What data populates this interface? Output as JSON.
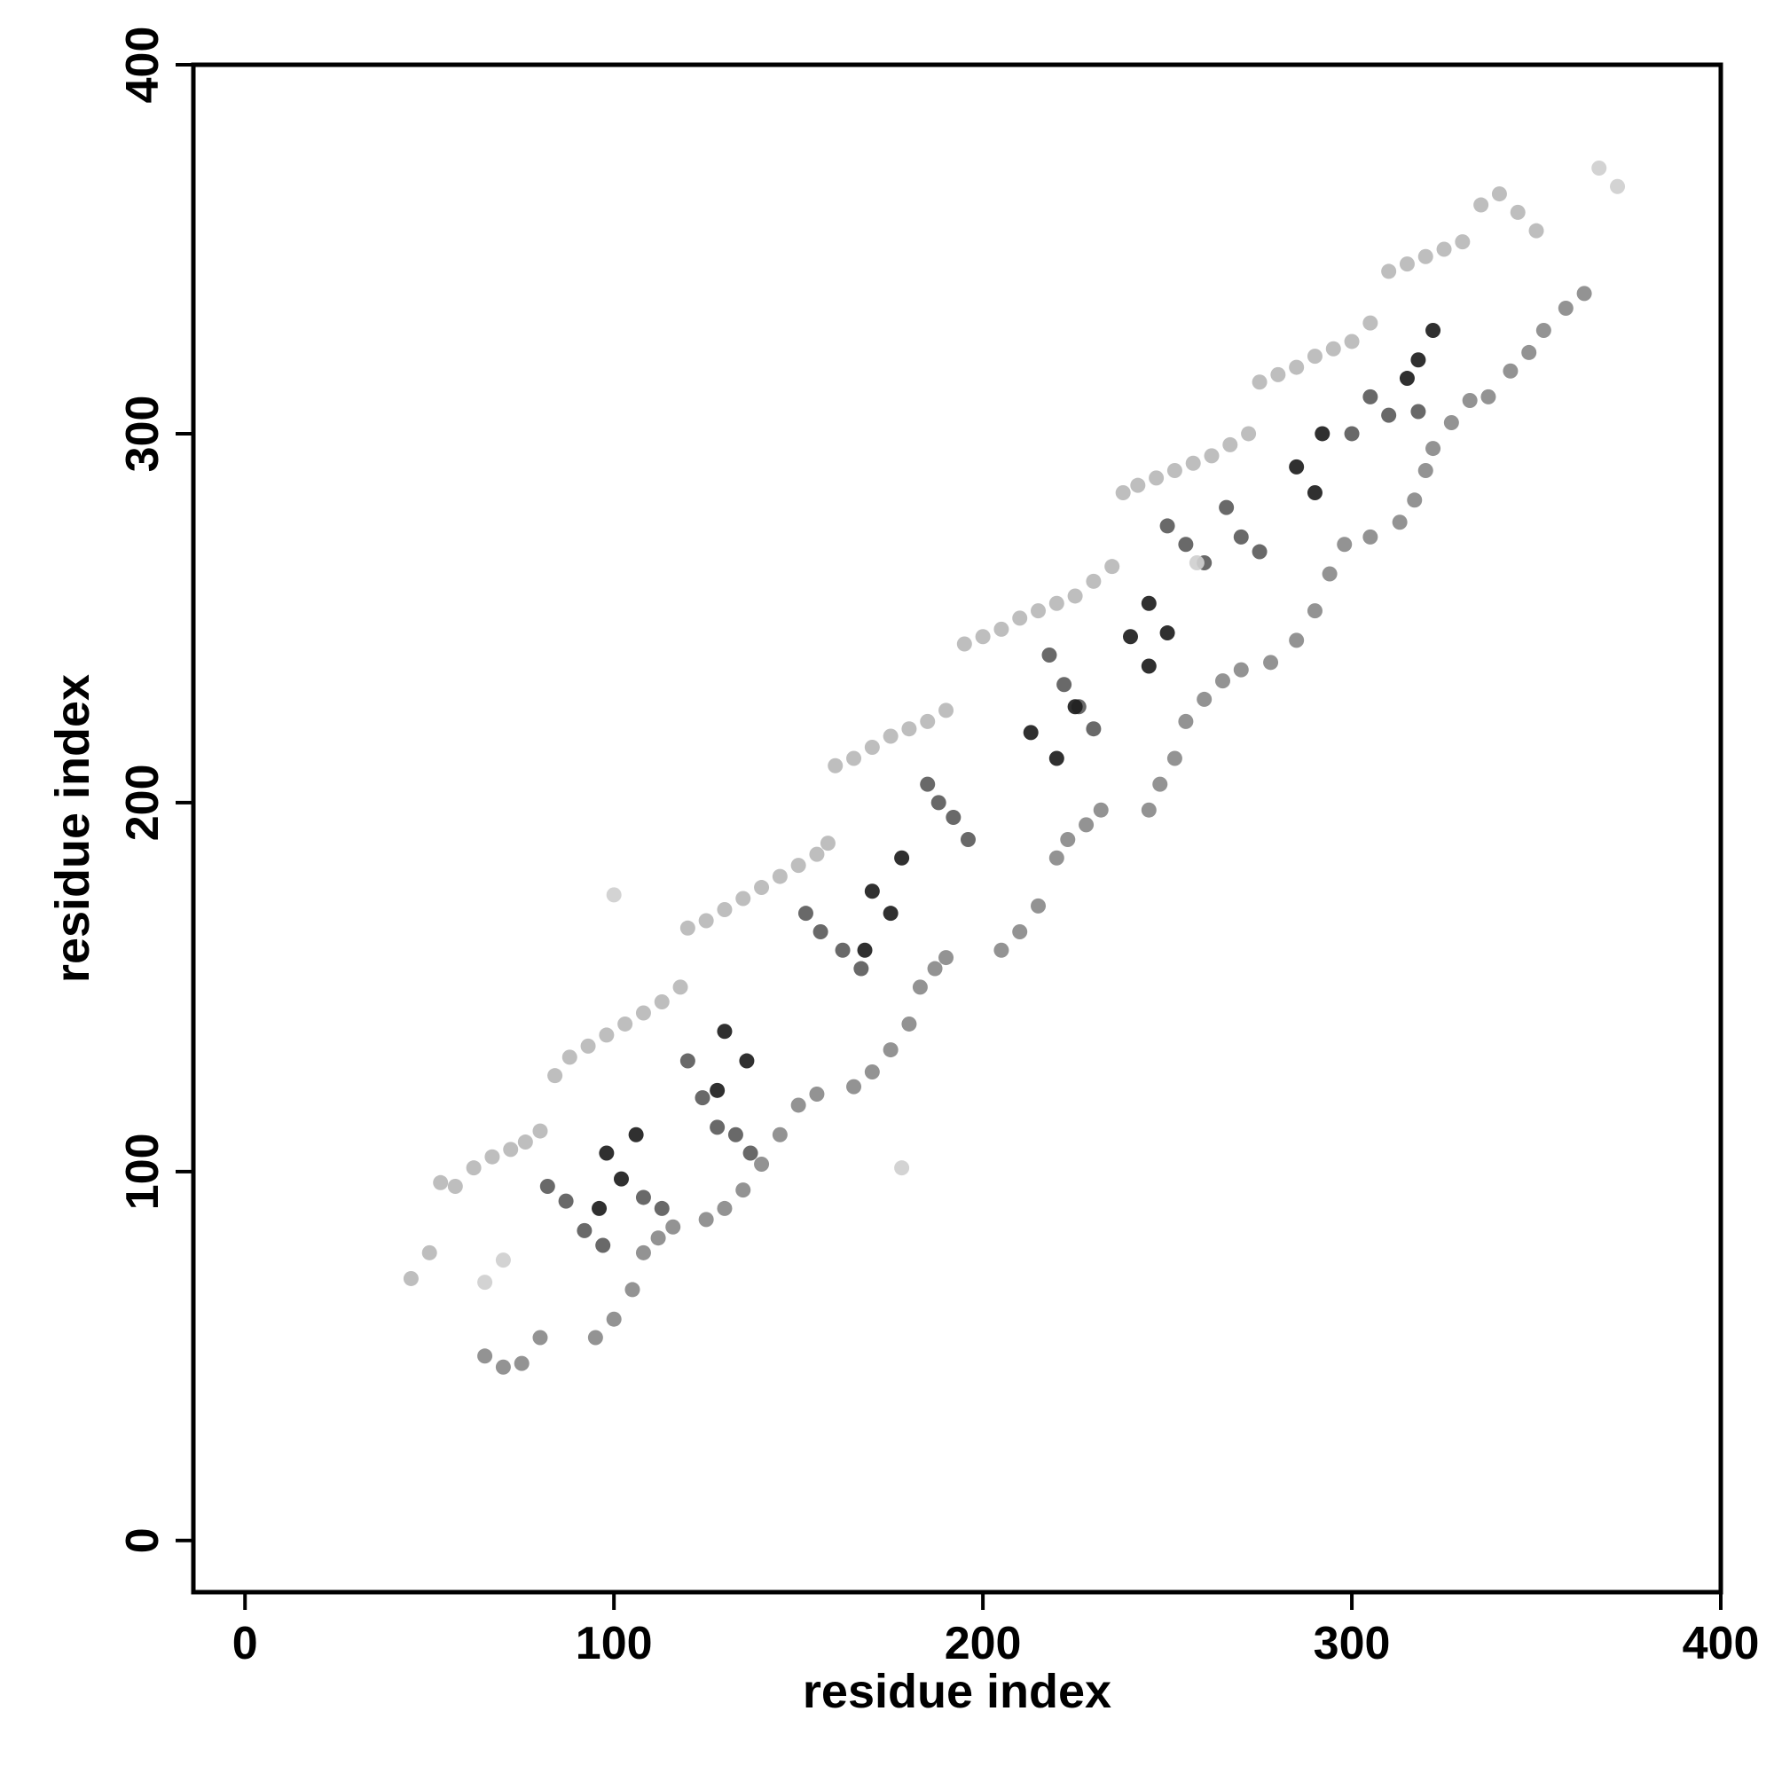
{
  "chart_data": {
    "type": "scatter",
    "x_label": "residue index",
    "y_label": "residue index",
    "xlim": [
      -14,
      400
    ],
    "ylim": [
      -14,
      400
    ],
    "xticks": [
      0,
      100,
      200,
      300,
      400
    ],
    "yticks": [
      0,
      100,
      200,
      300,
      400
    ],
    "grid": false,
    "series": [
      {
        "color": "#b8b8b8",
        "x": [
          45,
          50,
          53,
          57,
          62,
          67,
          72,
          76,
          80,
          84,
          88,
          93,
          98,
          103,
          108,
          113,
          118,
          120,
          125,
          130,
          135,
          140,
          145,
          150,
          155,
          158,
          160,
          165,
          170,
          175,
          180,
          185,
          190,
          195,
          200,
          205,
          210,
          215,
          220,
          225,
          230,
          235,
          238,
          242,
          247,
          252,
          257,
          262,
          267,
          272,
          275,
          280,
          285,
          290,
          295,
          300,
          305,
          310,
          315,
          320,
          325,
          330,
          335,
          340,
          345,
          350
        ],
        "y": [
          71,
          78,
          97,
          96,
          101,
          104,
          106,
          108,
          111,
          126,
          131,
          134,
          137,
          140,
          143,
          146,
          150,
          166,
          168,
          171,
          174,
          177,
          180,
          183,
          186,
          189,
          210,
          212,
          215,
          218,
          220,
          222,
          225,
          243,
          245,
          247,
          250,
          252,
          254,
          256,
          260,
          264,
          284,
          286,
          288,
          290,
          292,
          294,
          297,
          300,
          314,
          316,
          318,
          321,
          323,
          325,
          330,
          344,
          346,
          348,
          350,
          352,
          362,
          365,
          360,
          355
        ]
      },
      {
        "color": "#8a8a8a",
        "x": [
          65,
          70,
          75,
          80,
          95,
          100,
          105,
          108,
          112,
          116,
          125,
          130,
          135,
          140,
          145,
          150,
          155,
          165,
          170,
          175,
          180,
          183,
          187,
          190,
          205,
          210,
          215,
          220,
          223,
          228,
          232,
          245,
          248,
          252,
          255,
          260,
          265,
          270,
          278,
          285,
          290,
          294,
          298,
          305,
          313,
          317,
          320,
          322,
          327,
          332,
          337,
          343,
          348,
          352,
          358,
          363
        ],
        "y": [
          50,
          47,
          48,
          55,
          55,
          60,
          68,
          78,
          82,
          85,
          87,
          90,
          95,
          102,
          110,
          118,
          121,
          123,
          127,
          133,
          140,
          150,
          155,
          158,
          160,
          165,
          172,
          185,
          190,
          194,
          198,
          198,
          205,
          212,
          222,
          228,
          233,
          236,
          238,
          244,
          252,
          262,
          270,
          272,
          276,
          282,
          290,
          296,
          303,
          309,
          310,
          317,
          322,
          328,
          334,
          338
        ]
      },
      {
        "color": "#5c5c5c",
        "x": [
          82,
          87,
          92,
          97,
          108,
          113,
          120,
          124,
          128,
          133,
          137,
          152,
          156,
          162,
          167,
          185,
          188,
          192,
          196,
          218,
          222,
          226,
          230,
          250,
          255,
          260,
          266,
          270,
          275,
          300,
          305,
          310,
          318
        ],
        "y": [
          96,
          92,
          84,
          80,
          93,
          90,
          130,
          120,
          112,
          110,
          105,
          170,
          165,
          160,
          155,
          205,
          200,
          196,
          190,
          240,
          232,
          226,
          220,
          275,
          270,
          265,
          280,
          272,
          268,
          300,
          310,
          305,
          306
        ]
      },
      {
        "color": "#1e1e1e",
        "x": [
          98,
          102,
          96,
          106,
          130,
          128,
          136,
          170,
          175,
          168,
          178,
          213,
          220,
          225,
          245,
          250,
          245,
          240,
          285,
          290,
          292,
          318,
          322,
          315
        ],
        "y": [
          105,
          98,
          90,
          110,
          138,
          122,
          130,
          176,
          170,
          160,
          185,
          219,
          212,
          226,
          254,
          246,
          237,
          245,
          291,
          284,
          300,
          320,
          328,
          315
        ]
      },
      {
        "color": "#cfcfcf",
        "x": [
          100,
          178,
          65,
          70,
          258,
          367,
          372
        ],
        "y": [
          175,
          101,
          70,
          76,
          265,
          372,
          367
        ]
      }
    ]
  }
}
